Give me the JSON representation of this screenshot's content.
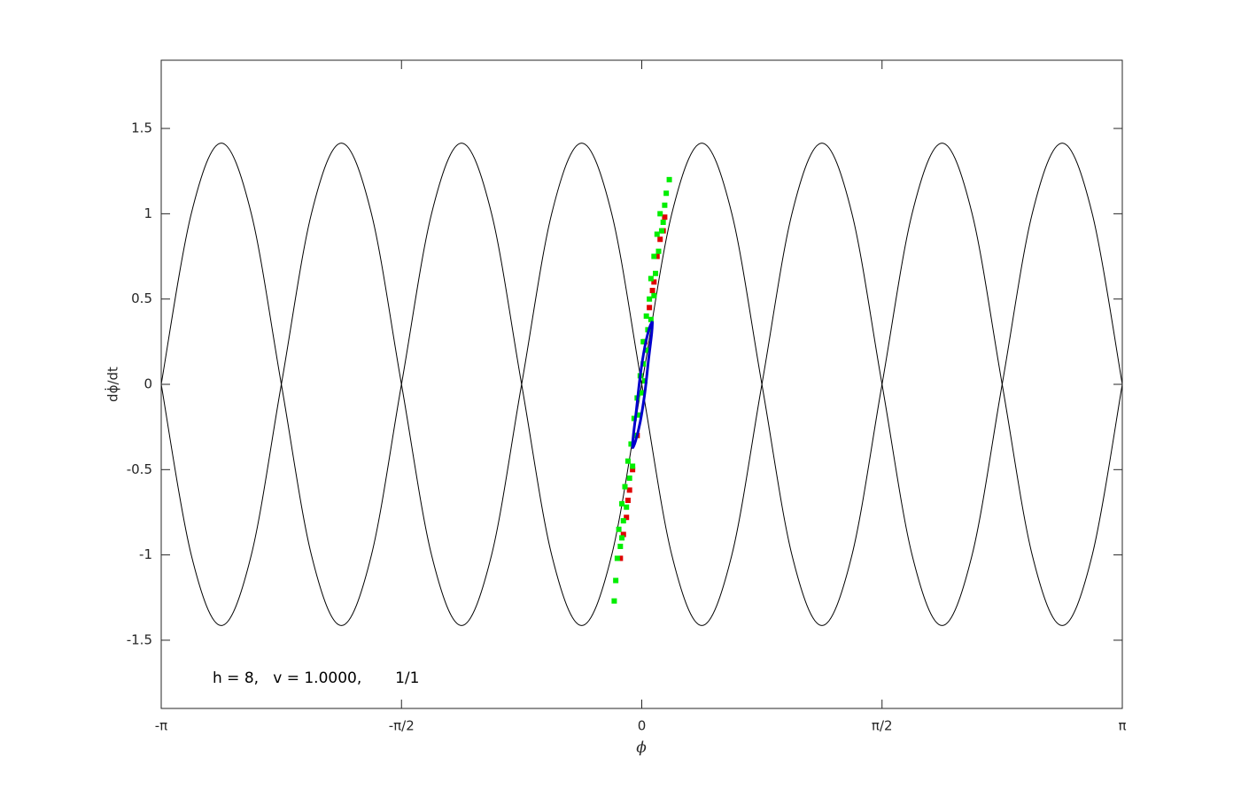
{
  "chart_data": {
    "type": "line",
    "xlabel": "ϕ",
    "ylabel": "dϕ̇/dt",
    "annotation": "h = 8,   v = 1.0000,       1/1",
    "xlim": [
      -3.1416,
      3.1416
    ],
    "ylim": [
      -1.9,
      1.9
    ],
    "xticks": [
      {
        "value": -3.1416,
        "label": "-π"
      },
      {
        "value": -1.5708,
        "label": "-π/2"
      },
      0,
      {
        "value": 1.5708,
        "label": "π/2"
      },
      {
        "value": 3.1416,
        "label": "π"
      }
    ],
    "yticks": [
      -1.5,
      -1,
      -0.5,
      0,
      0.5,
      1,
      1.5
    ],
    "series": [
      {
        "type": "line",
        "color": "#000000",
        "x": [
          -3.1416,
          -2.9452,
          -2.7489,
          -2.5525,
          -2.3562,
          -2.1598,
          -1.9635,
          -1.7671,
          -1.5708,
          -1.3744,
          -1.1781,
          -0.9817,
          -0.7854,
          -0.589,
          -0.3927,
          -0.1963,
          0,
          0.1963,
          0.3927,
          0.589,
          0.7854,
          0.9817,
          1.1781,
          1.3744,
          1.5708,
          1.7671,
          1.9635,
          2.1598,
          2.3562,
          2.5525,
          2.7489,
          2.9452,
          3.1416
        ],
        "values": [
          0,
          1,
          1.414,
          1,
          0,
          -1,
          -1.414,
          -1,
          0,
          1,
          1.414,
          1,
          0,
          -1,
          -1.414,
          -1,
          0,
          1,
          1.414,
          1,
          0,
          -1,
          -1.414,
          -1,
          0,
          1,
          1.414,
          1,
          0,
          -1,
          -1.414,
          -1,
          0
        ]
      },
      {
        "type": "line",
        "color": "#000000",
        "x": [
          -3.1416,
          -2.9452,
          -2.7489,
          -2.5525,
          -2.3562,
          -2.1598,
          -1.9635,
          -1.7671,
          -1.5708,
          -1.3744,
          -1.1781,
          -0.9817,
          -0.7854,
          -0.589,
          -0.3927,
          -0.1963,
          0,
          0.1963,
          0.3927,
          0.589,
          0.7854,
          0.9817,
          1.1781,
          1.3744,
          1.5708,
          1.7671,
          1.9635,
          2.1598,
          2.3562,
          2.5525,
          2.7489,
          2.9452,
          3.1416
        ],
        "values": [
          0,
          -1,
          -1.414,
          -1,
          0,
          1,
          1.414,
          1,
          0,
          -1,
          -1.414,
          -1,
          0,
          1,
          1.414,
          1,
          0,
          -1,
          -1.414,
          -1,
          0,
          1,
          1.414,
          1,
          0,
          -1,
          -1.414,
          -1,
          0,
          1,
          1.414,
          1,
          0
        ]
      },
      {
        "type": "scatter",
        "color": "#e00000",
        "x": [
          -0.14,
          -0.12,
          -0.1,
          -0.08,
          -0.06,
          -0.03,
          0.02,
          0.05,
          0.08,
          0.1,
          0.12,
          0.14,
          0.15,
          -0.09,
          0.07
        ],
        "values": [
          -1.02,
          -0.88,
          -0.78,
          -0.62,
          -0.5,
          -0.3,
          0.25,
          0.45,
          0.6,
          0.75,
          0.85,
          0.9,
          0.98,
          -0.68,
          0.55
        ]
      },
      {
        "type": "scatter",
        "color": "#00ee00",
        "x": [
          -0.18,
          -0.17,
          -0.16,
          -0.14,
          -0.15,
          -0.12,
          -0.13,
          -0.1,
          -0.11,
          -0.08,
          -0.09,
          -0.06,
          -0.07,
          -0.04,
          -0.05,
          -0.02,
          -0.03,
          0,
          -0.01,
          0.02,
          0.01,
          0.03,
          0.01,
          0.04,
          0.03,
          0.06,
          0.05,
          0.08,
          0.06,
          0.09,
          0.08,
          0.11,
          0.1,
          0.13,
          0.12,
          0.15,
          0.16,
          0.18,
          0.14,
          -0.13
        ],
        "values": [
          -1.27,
          -1.15,
          -1.02,
          -0.95,
          -0.85,
          -0.8,
          -0.7,
          -0.72,
          -0.6,
          -0.55,
          -0.45,
          -0.48,
          -0.35,
          -0.3,
          -0.2,
          -0.18,
          -0.08,
          -0.05,
          0.05,
          0.02,
          0.12,
          0.2,
          0.25,
          0.32,
          0.4,
          0.38,
          0.5,
          0.52,
          0.62,
          0.65,
          0.75,
          0.78,
          0.88,
          0.9,
          1.0,
          1.05,
          1.12,
          1.2,
          0.95,
          -0.9
        ]
      },
      {
        "type": "line",
        "color": "#0000cc",
        "x": [
          0.07,
          0.065,
          0.045,
          0.02,
          -0.01,
          -0.04,
          -0.06,
          -0.055,
          -0.035,
          -0.01,
          0.02,
          0.05,
          0.07
        ],
        "values": [
          0.37,
          0.3,
          0.15,
          -0.05,
          -0.22,
          -0.33,
          -0.37,
          -0.3,
          -0.15,
          0.05,
          0.22,
          0.33,
          0.37
        ]
      }
    ]
  }
}
